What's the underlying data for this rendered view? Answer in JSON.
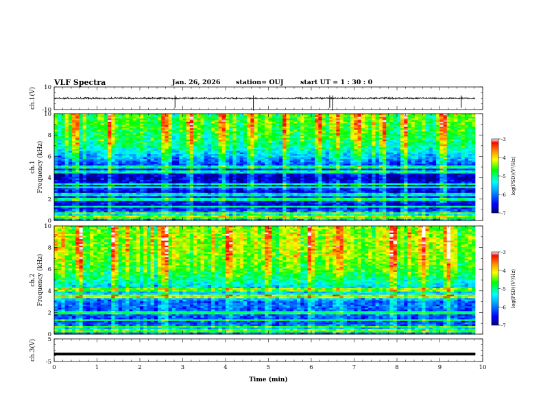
{
  "header": {
    "title": "VLF Spectra",
    "date": "Jan. 26, 2026",
    "station": "station= OUJ",
    "start_ut": "start  UT =   1 : 30 : 0"
  },
  "chart_data": [
    {
      "type": "line",
      "name": "waveform_ch1",
      "ylabel": "ch.1(V)",
      "ylim": [
        -10,
        10
      ],
      "ytick_labels": [
        "10",
        "-10"
      ],
      "x_range_min": [
        0,
        9.83
      ],
      "baseline_v": 0,
      "spike_times_min": [
        2.82,
        4.65,
        6.43,
        6.5,
        9.5
      ],
      "colors": {
        "line": "#000000"
      }
    },
    {
      "type": "heatmap",
      "name": "spectrogram_ch1",
      "ylabel": "Frequency (kHz)",
      "channel_label": "ch.1",
      "xlim": [
        0,
        10
      ],
      "ylim": [
        0,
        10
      ],
      "ytick_labels": [
        "0",
        "2",
        "4",
        "6",
        "8",
        "10"
      ],
      "x_data_end_min": 9.83,
      "colorbar": {
        "label": "log(PSD)(V²/Hz)",
        "ticks": [
          "-3",
          "-4",
          "-5",
          "-6",
          "-7"
        ],
        "range": [
          -7,
          -3
        ]
      },
      "mean_log_psd_profile": [
        {
          "f_khz": 0.0,
          "v": -6.0
        },
        {
          "f_khz": 0.5,
          "v": -5.4
        },
        {
          "f_khz": 1.0,
          "v": -6.3
        },
        {
          "f_khz": 1.5,
          "v": -6.7
        },
        {
          "f_khz": 2.0,
          "v": -6.2
        },
        {
          "f_khz": 2.5,
          "v": -6.8
        },
        {
          "f_khz": 3.0,
          "v": -6.3
        },
        {
          "f_khz": 4.0,
          "v": -6.8
        },
        {
          "f_khz": 5.0,
          "v": -6.4
        },
        {
          "f_khz": 6.0,
          "v": -5.6
        },
        {
          "f_khz": 7.0,
          "v": -5.0
        },
        {
          "f_khz": 8.0,
          "v": -4.8
        },
        {
          "f_khz": 9.0,
          "v": -4.6
        },
        {
          "f_khz": 10.0,
          "v": -4.6
        }
      ],
      "narrowband_lines_khz": [
        0.3,
        0.7,
        1.3,
        2.0,
        2.4,
        3.1,
        3.4,
        4.5,
        5.0
      ],
      "sferic_bursts_min": [
        0.5,
        1.3,
        2.6,
        3.2,
        3.9,
        4.6,
        5.4,
        6.2,
        6.6,
        7.1,
        7.7,
        8.2,
        9.1
      ]
    },
    {
      "type": "heatmap",
      "name": "spectrogram_ch2",
      "ylabel": "Frequency (kHz)",
      "channel_label": "ch.2",
      "xlim": [
        0,
        10
      ],
      "ylim": [
        0,
        10
      ],
      "ytick_labels": [
        "0",
        "2",
        "4",
        "6",
        "8",
        "10"
      ],
      "x_data_end_min": 9.83,
      "colorbar": {
        "label": "log(PSD)(V²/Hz)",
        "ticks": [
          "-3",
          "-4",
          "-5",
          "-6",
          "-7"
        ],
        "range": [
          -7,
          -3
        ]
      },
      "mean_log_psd_profile": [
        {
          "f_khz": 0.0,
          "v": -6.0
        },
        {
          "f_khz": 0.5,
          "v": -5.6
        },
        {
          "f_khz": 1.0,
          "v": -6.2
        },
        {
          "f_khz": 2.0,
          "v": -6.1
        },
        {
          "f_khz": 3.0,
          "v": -6.0
        },
        {
          "f_khz": 3.5,
          "v": -5.2
        },
        {
          "f_khz": 4.0,
          "v": -5.7
        },
        {
          "f_khz": 5.0,
          "v": -5.0
        },
        {
          "f_khz": 6.0,
          "v": -4.6
        },
        {
          "f_khz": 7.0,
          "v": -4.4
        },
        {
          "f_khz": 8.0,
          "v": -4.3
        },
        {
          "f_khz": 9.0,
          "v": -4.3
        },
        {
          "f_khz": 10.0,
          "v": -4.4
        }
      ],
      "narrowband_lines_khz": [
        0.3,
        0.7,
        1.3,
        2.0,
        3.5,
        4.1
      ],
      "sferic_bursts_min": [
        0.6,
        1.4,
        2.6,
        4.1,
        5.0,
        6.0,
        6.65,
        7.9,
        8.6,
        9.2
      ]
    },
    {
      "type": "line",
      "name": "waveform_ch3",
      "ylabel": "ch.3(V)",
      "ylim": [
        -5,
        5
      ],
      "ytick_labels": [
        "5",
        "-5"
      ],
      "x_range_min": [
        0,
        9.83
      ],
      "baseline_v": -1.7,
      "colors": {
        "line": "#000000"
      }
    }
  ],
  "xaxis": {
    "label": "Time  (min)",
    "range": [
      0,
      10
    ],
    "tick_labels": [
      "0",
      "1",
      "2",
      "3",
      "4",
      "5",
      "6",
      "7",
      "8",
      "9",
      "10"
    ]
  }
}
